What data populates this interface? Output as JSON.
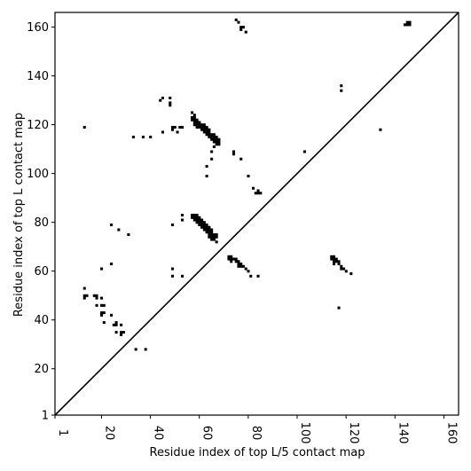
{
  "chart_data": {
    "type": "heatmap",
    "title": "",
    "xlabel": "Residue index of top L/5 contact map",
    "ylabel": "Residue index of top L contact map",
    "xlim": [
      1,
      166
    ],
    "ylim": [
      1,
      166
    ],
    "x_ticks": [
      1,
      20,
      40,
      60,
      80,
      100,
      120,
      140,
      160
    ],
    "y_ticks": [
      1,
      20,
      40,
      60,
      80,
      100,
      120,
      140,
      160
    ],
    "x_tick_labels": [
      "1",
      "20",
      "40",
      "60",
      "80",
      "100",
      "120",
      "140",
      "160"
    ],
    "y_tick_labels": [
      "1",
      "20",
      "40",
      "60",
      "80",
      "100",
      "120",
      "140",
      "160"
    ],
    "diagonal": true,
    "cell_color": "#000000",
    "background": "#ffffff",
    "grid": false,
    "contacts_upper": [
      [
        145,
        162
      ],
      [
        146,
        162
      ],
      [
        144,
        161
      ],
      [
        145,
        161
      ],
      [
        146,
        161
      ],
      [
        75,
        163
      ],
      [
        76,
        162
      ],
      [
        77,
        160
      ],
      [
        78,
        160
      ],
      [
        77,
        159
      ],
      [
        79,
        158
      ],
      [
        45,
        131
      ],
      [
        48,
        131
      ],
      [
        44,
        130
      ],
      [
        48,
        129
      ],
      [
        48,
        128
      ],
      [
        57,
        125
      ],
      [
        58,
        124
      ],
      [
        57,
        123
      ],
      [
        58,
        123
      ],
      [
        57,
        122
      ],
      [
        58,
        122
      ],
      [
        59,
        122
      ],
      [
        58,
        121
      ],
      [
        59,
        121
      ],
      [
        60,
        121
      ],
      [
        58,
        120
      ],
      [
        59,
        120
      ],
      [
        60,
        120
      ],
      [
        61,
        120
      ],
      [
        62,
        120
      ],
      [
        59,
        119
      ],
      [
        60,
        119
      ],
      [
        61,
        119
      ],
      [
        62,
        119
      ],
      [
        63,
        119
      ],
      [
        13,
        119
      ],
      [
        52,
        119
      ],
      [
        53,
        119
      ],
      [
        61,
        118
      ],
      [
        62,
        118
      ],
      [
        63,
        118
      ],
      [
        64,
        118
      ],
      [
        49,
        119
      ],
      [
        50,
        119
      ],
      [
        49,
        118
      ],
      [
        62,
        117
      ],
      [
        63,
        117
      ],
      [
        64,
        117
      ],
      [
        45,
        117
      ],
      [
        51,
        117
      ],
      [
        63,
        116
      ],
      [
        64,
        116
      ],
      [
        65,
        116
      ],
      [
        66,
        116
      ],
      [
        64,
        115
      ],
      [
        65,
        115
      ],
      [
        66,
        115
      ],
      [
        67,
        115
      ],
      [
        33,
        115
      ],
      [
        37,
        115
      ],
      [
        40,
        115
      ],
      [
        65,
        114
      ],
      [
        66,
        114
      ],
      [
        67,
        114
      ],
      [
        68,
        114
      ],
      [
        66,
        113
      ],
      [
        67,
        113
      ],
      [
        68,
        113
      ],
      [
        67,
        112
      ],
      [
        68,
        112
      ],
      [
        66,
        111
      ],
      [
        65,
        109
      ],
      [
        74,
        109
      ],
      [
        74,
        108
      ],
      [
        65,
        106
      ],
      [
        77,
        106
      ],
      [
        103,
        109
      ],
      [
        63,
        103
      ],
      [
        63,
        99
      ],
      [
        80,
        99
      ],
      [
        82,
        94
      ],
      [
        84,
        93
      ],
      [
        83,
        92
      ],
      [
        84,
        92
      ],
      [
        85,
        92
      ],
      [
        53,
        83
      ],
      [
        57,
        83
      ],
      [
        58,
        83
      ],
      [
        59,
        83
      ],
      [
        57,
        82
      ],
      [
        58,
        82
      ],
      [
        59,
        82
      ],
      [
        60,
        82
      ],
      [
        53,
        81
      ],
      [
        58,
        81
      ],
      [
        59,
        81
      ],
      [
        60,
        81
      ],
      [
        61,
        81
      ],
      [
        59,
        80
      ],
      [
        60,
        80
      ],
      [
        61,
        80
      ],
      [
        62,
        80
      ],
      [
        24,
        79
      ],
      [
        49,
        79
      ],
      [
        60,
        79
      ],
      [
        61,
        79
      ],
      [
        62,
        79
      ],
      [
        63,
        79
      ],
      [
        61,
        78
      ],
      [
        62,
        78
      ],
      [
        63,
        78
      ],
      [
        64,
        78
      ],
      [
        27,
        77
      ],
      [
        62,
        77
      ],
      [
        63,
        77
      ],
      [
        64,
        77
      ],
      [
        65,
        77
      ],
      [
        63,
        76
      ],
      [
        64,
        76
      ],
      [
        65,
        76
      ],
      [
        31,
        75
      ],
      [
        64,
        75
      ],
      [
        65,
        75
      ],
      [
        66,
        75
      ],
      [
        67,
        75
      ],
      [
        64,
        74
      ],
      [
        65,
        74
      ],
      [
        66,
        74
      ],
      [
        67,
        74
      ],
      [
        65,
        73
      ],
      [
        66,
        73
      ],
      [
        67,
        72
      ],
      [
        72,
        66
      ],
      [
        73,
        66
      ],
      [
        72,
        65
      ],
      [
        73,
        65
      ],
      [
        74,
        65
      ],
      [
        75,
        65
      ],
      [
        73,
        64
      ],
      [
        75,
        64
      ],
      [
        76,
        64
      ],
      [
        76,
        63
      ],
      [
        77,
        63
      ],
      [
        76,
        62
      ],
      [
        77,
        62
      ],
      [
        78,
        62
      ],
      [
        79,
        61
      ],
      [
        80,
        60
      ],
      [
        24,
        63
      ],
      [
        20,
        61
      ],
      [
        49,
        61
      ],
      [
        49,
        58
      ],
      [
        53,
        58
      ],
      [
        81,
        58
      ],
      [
        84,
        58
      ],
      [
        13,
        53
      ],
      [
        13,
        50
      ],
      [
        14,
        50
      ],
      [
        17,
        50
      ],
      [
        18,
        50
      ],
      [
        13,
        49
      ],
      [
        18,
        49
      ],
      [
        20,
        49
      ],
      [
        18,
        46
      ],
      [
        20,
        46
      ],
      [
        21,
        46
      ],
      [
        20,
        43
      ],
      [
        21,
        43
      ],
      [
        20,
        42
      ],
      [
        24,
        42
      ],
      [
        21,
        39
      ],
      [
        26,
        39
      ],
      [
        25,
        38
      ],
      [
        26,
        38
      ],
      [
        28,
        38
      ],
      [
        26,
        35
      ],
      [
        28,
        35
      ],
      [
        29,
        35
      ],
      [
        28,
        34
      ],
      [
        34,
        28
      ],
      [
        38,
        28
      ],
      [
        134,
        118
      ]
    ],
    "contacts_lower": [
      [
        118,
        136
      ],
      [
        118,
        134
      ],
      [
        114,
        66
      ],
      [
        115,
        66
      ],
      [
        114,
        65
      ],
      [
        115,
        65
      ],
      [
        116,
        65
      ],
      [
        115,
        64
      ],
      [
        116,
        64
      ],
      [
        117,
        64
      ],
      [
        115,
        63
      ],
      [
        117,
        63
      ],
      [
        118,
        62
      ],
      [
        118,
        61
      ],
      [
        119,
        61
      ],
      [
        120,
        60
      ],
      [
        122,
        59
      ],
      [
        117,
        45
      ]
    ]
  }
}
